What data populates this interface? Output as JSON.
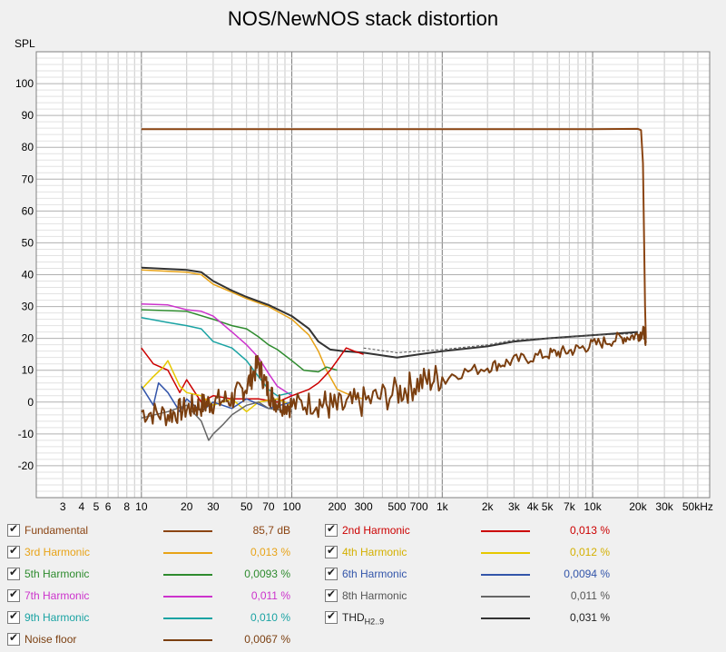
{
  "chart_data": {
    "type": "line",
    "title": "NOS/NewNOS stack distortion",
    "ylabel": "SPL",
    "xlabel": "",
    "x_scale": "log",
    "xlim": [
      2,
      60000
    ],
    "ylim": [
      -30,
      110
    ],
    "grid": true,
    "y_ticks": [
      100,
      90,
      80,
      70,
      60,
      50,
      40,
      30,
      20,
      10,
      0,
      -10,
      -20
    ],
    "x_ticks": [
      {
        "v": 3,
        "label": "3"
      },
      {
        "v": 4,
        "label": "4"
      },
      {
        "v": 5,
        "label": "5"
      },
      {
        "v": 6,
        "label": "6"
      },
      {
        "v": 8,
        "label": "8"
      },
      {
        "v": 10,
        "label": "10"
      },
      {
        "v": 20,
        "label": "20"
      },
      {
        "v": 30,
        "label": "30"
      },
      {
        "v": 50,
        "label": "50"
      },
      {
        "v": 70,
        "label": "70"
      },
      {
        "v": 100,
        "label": "100"
      },
      {
        "v": 200,
        "label": "200"
      },
      {
        "v": 300,
        "label": "300"
      },
      {
        "v": 500,
        "label": "500"
      },
      {
        "v": 700,
        "label": "700"
      },
      {
        "v": 1000,
        "label": "1k"
      },
      {
        "v": 2000,
        "label": "2k"
      },
      {
        "v": 3000,
        "label": "3k"
      },
      {
        "v": 4000,
        "label": "4k"
      },
      {
        "v": 5000,
        "label": "5k"
      },
      {
        "v": 7000,
        "label": "7k"
      },
      {
        "v": 10000,
        "label": "10k"
      },
      {
        "v": 20000,
        "label": "20k"
      },
      {
        "v": 30000,
        "label": "30k"
      },
      {
        "v": 50000,
        "label": "50kHz"
      }
    ],
    "series": [
      {
        "name": "Fundamental",
        "color": "#8b4513",
        "width": 2,
        "points": [
          [
            10,
            85.7
          ],
          [
            1000,
            85.7
          ],
          [
            10000,
            85.7
          ],
          [
            20000,
            85.8
          ],
          [
            21000,
            85.4
          ],
          [
            21600,
            75
          ],
          [
            22000,
            50
          ],
          [
            22300,
            30
          ],
          [
            22600,
            20
          ]
        ]
      },
      {
        "name": "3rd Harmonic",
        "color": "#e8a317",
        "width": 1.5,
        "points": [
          [
            10,
            41.5
          ],
          [
            20,
            40.8
          ],
          [
            25,
            40
          ],
          [
            30,
            37
          ],
          [
            40,
            34.5
          ],
          [
            50,
            32.5
          ],
          [
            70,
            30
          ],
          [
            100,
            26
          ],
          [
            130,
            21
          ],
          [
            150,
            16
          ],
          [
            170,
            10
          ],
          [
            200,
            4
          ],
          [
            250,
            2
          ],
          [
            300,
            1
          ]
        ]
      },
      {
        "name": "THD",
        "color": "#333333",
        "width": 2,
        "points": [
          [
            10,
            42.2
          ],
          [
            20,
            41.5
          ],
          [
            25,
            40.8
          ],
          [
            30,
            38
          ],
          [
            40,
            35
          ],
          [
            50,
            33
          ],
          [
            70,
            30.5
          ],
          [
            100,
            27
          ],
          [
            130,
            23
          ],
          [
            150,
            19
          ],
          [
            180,
            16.5
          ],
          [
            220,
            16
          ],
          [
            300,
            15.5
          ],
          [
            500,
            14
          ],
          [
            700,
            15
          ],
          [
            1000,
            16
          ],
          [
            2000,
            17.5
          ],
          [
            3000,
            19
          ],
          [
            5000,
            20
          ],
          [
            10000,
            21
          ],
          [
            20000,
            22
          ]
        ]
      },
      {
        "name": "5th Harmonic",
        "color": "#2e8b2e",
        "width": 1.5,
        "points": [
          [
            10,
            29
          ],
          [
            20,
            28.5
          ],
          [
            30,
            26
          ],
          [
            40,
            24
          ],
          [
            50,
            23
          ],
          [
            60,
            20.5
          ],
          [
            70,
            18
          ],
          [
            80,
            16.5
          ],
          [
            100,
            13
          ],
          [
            120,
            10
          ],
          [
            150,
            9.5
          ],
          [
            170,
            11
          ],
          [
            200,
            10
          ]
        ]
      },
      {
        "name": "7th Harmonic",
        "color": "#cc33cc",
        "width": 1.5,
        "points": [
          [
            10,
            30.8
          ],
          [
            15,
            30.5
          ],
          [
            20,
            29
          ],
          [
            25,
            28.5
          ],
          [
            30,
            27
          ],
          [
            40,
            22
          ],
          [
            50,
            18
          ],
          [
            60,
            14
          ],
          [
            70,
            9
          ],
          [
            80,
            5
          ],
          [
            100,
            2
          ]
        ]
      },
      {
        "name": "9th Harmonic",
        "color": "#1aa3a3",
        "width": 1.5,
        "points": [
          [
            10,
            26.5
          ],
          [
            15,
            25
          ],
          [
            20,
            24
          ],
          [
            25,
            23
          ],
          [
            30,
            19
          ],
          [
            40,
            17
          ],
          [
            50,
            13
          ],
          [
            60,
            8
          ],
          [
            70,
            4
          ],
          [
            80,
            2
          ],
          [
            100,
            3
          ]
        ]
      },
      {
        "name": "2nd Harmonic",
        "color": "#cc0000",
        "width": 1.5,
        "points": [
          [
            10,
            17
          ],
          [
            12,
            12
          ],
          [
            15,
            10
          ],
          [
            18,
            3
          ],
          [
            20,
            7
          ],
          [
            25,
            0
          ],
          [
            30,
            2
          ],
          [
            40,
            1
          ],
          [
            60,
            1
          ],
          [
            80,
            0
          ],
          [
            100,
            2
          ],
          [
            130,
            4
          ],
          [
            150,
            6
          ],
          [
            180,
            10
          ],
          [
            200,
            13
          ],
          [
            230,
            17
          ],
          [
            260,
            16
          ],
          [
            300,
            15
          ]
        ]
      },
      {
        "name": "4th Harmonic",
        "color": "#e6c800",
        "width": 1.5,
        "points": [
          [
            10,
            4
          ],
          [
            12,
            8
          ],
          [
            14,
            11
          ],
          [
            15,
            13
          ],
          [
            18,
            5
          ],
          [
            20,
            3
          ],
          [
            25,
            2
          ],
          [
            30,
            -1
          ],
          [
            40,
            1
          ],
          [
            50,
            -3
          ],
          [
            60,
            0
          ],
          [
            80,
            1
          ],
          [
            100,
            -1
          ]
        ]
      },
      {
        "name": "6th Harmonic",
        "color": "#3355aa",
        "width": 1.5,
        "points": [
          [
            10,
            5
          ],
          [
            12,
            -1
          ],
          [
            13,
            6
          ],
          [
            15,
            3
          ],
          [
            18,
            -3
          ],
          [
            20,
            1
          ],
          [
            25,
            -3
          ],
          [
            30,
            0
          ],
          [
            40,
            -2
          ],
          [
            50,
            1
          ],
          [
            70,
            -2
          ],
          [
            100,
            0
          ]
        ]
      },
      {
        "name": "8th Harmonic",
        "color": "#666666",
        "width": 1.5,
        "points": [
          [
            10,
            -5
          ],
          [
            15,
            -3
          ],
          [
            20,
            -1
          ],
          [
            25,
            -6
          ],
          [
            28,
            -12
          ],
          [
            30,
            -10
          ],
          [
            35,
            -7
          ],
          [
            40,
            -4
          ],
          [
            50,
            -1
          ],
          [
            60,
            0
          ],
          [
            70,
            -2
          ],
          [
            100,
            -3
          ]
        ]
      },
      {
        "name": "8th Harmonic upper",
        "color": "#555555",
        "width": 1,
        "dash": "3,2",
        "points": [
          [
            300,
            17
          ],
          [
            500,
            15.5
          ],
          [
            700,
            16
          ],
          [
            1000,
            16.5
          ],
          [
            2000,
            18
          ],
          [
            3000,
            19.5
          ],
          [
            5000,
            20
          ],
          [
            7000,
            20.5
          ],
          [
            10000,
            21
          ],
          [
            20000,
            21.5
          ]
        ]
      },
      {
        "name": "Noise floor",
        "color": "#7b3f10",
        "width": 2,
        "noisy": true,
        "points": [
          [
            10,
            -3
          ],
          [
            15,
            -4
          ],
          [
            20,
            -2
          ],
          [
            25,
            -1
          ],
          [
            30,
            0
          ],
          [
            40,
            1
          ],
          [
            50,
            5
          ],
          [
            60,
            12
          ],
          [
            70,
            3
          ],
          [
            80,
            0
          ],
          [
            100,
            -1
          ],
          [
            150,
            0
          ],
          [
            200,
            -2
          ],
          [
            300,
            0
          ],
          [
            500,
            3
          ],
          [
            700,
            6
          ],
          [
            1000,
            8
          ],
          [
            2000,
            11
          ],
          [
            3000,
            13
          ],
          [
            5000,
            15
          ],
          [
            7000,
            16
          ],
          [
            10000,
            18
          ],
          [
            15000,
            20
          ],
          [
            20000,
            21
          ],
          [
            22000,
            22
          ],
          [
            22600,
            19
          ]
        ]
      }
    ]
  },
  "legend": [
    {
      "label": "Fundamental",
      "value": "85,7 dB",
      "color": "#8b4513",
      "text_color": "#8b4513"
    },
    {
      "label": "2nd Harmonic",
      "value": "0,013 %",
      "color": "#cc0000",
      "text_color": "#cc0000"
    },
    {
      "label": "3rd Harmonic",
      "value": "0,013 %",
      "color": "#e8a317",
      "text_color": "#e8a317"
    },
    {
      "label": "4th Harmonic",
      "value": "0,012 %",
      "color": "#e6c800",
      "text_color": "#d4b000"
    },
    {
      "label": "5th Harmonic",
      "value": "0,0093 %",
      "color": "#2e8b2e",
      "text_color": "#2e8b2e"
    },
    {
      "label": "6th Harmonic",
      "value": "0,0094 %",
      "color": "#3355aa",
      "text_color": "#3355aa"
    },
    {
      "label": "7th Harmonic",
      "value": "0,011 %",
      "color": "#cc33cc",
      "text_color": "#cc33cc"
    },
    {
      "label": "8th Harmonic",
      "value": "0,011 %",
      "color": "#666666",
      "text_color": "#555555"
    },
    {
      "label": "9th Harmonic",
      "value": "0,010 %",
      "color": "#1aa3a3",
      "text_color": "#1aa3a3"
    },
    {
      "label": "THD",
      "sub": "H2..9",
      "value": "0,031 %",
      "color": "#333333",
      "text_color": "#222222"
    },
    {
      "label": "Noise floor",
      "value": "0,0067 %",
      "color": "#7b3f10",
      "text_color": "#7b3f10"
    }
  ]
}
